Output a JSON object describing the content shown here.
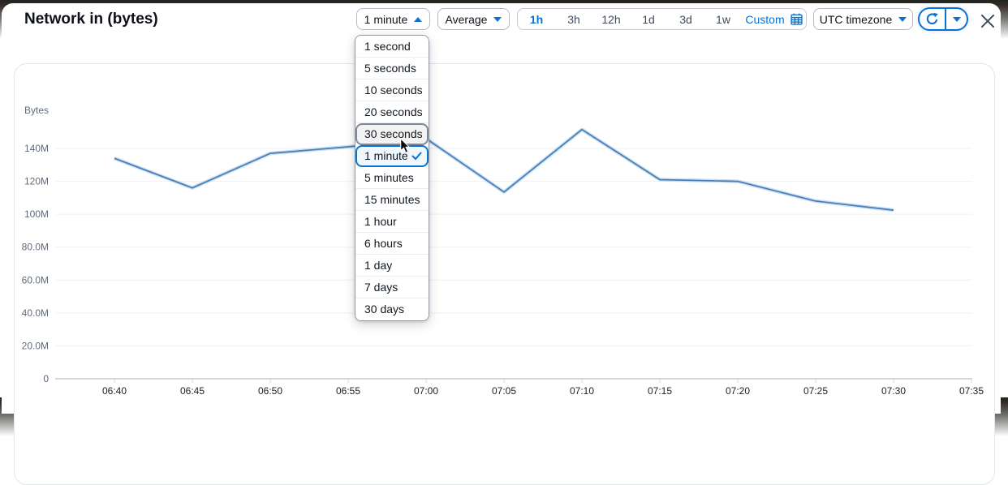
{
  "header": {
    "title": "Network in (bytes)",
    "period_button": {
      "label": "1 minute",
      "state": "open"
    },
    "statistic_button": {
      "label": "Average"
    },
    "time_ranges": [
      {
        "label": "1h",
        "selected": true
      },
      {
        "label": "3h",
        "selected": false
      },
      {
        "label": "12h",
        "selected": false
      },
      {
        "label": "1d",
        "selected": false
      },
      {
        "label": "3d",
        "selected": false
      },
      {
        "label": "1w",
        "selected": false
      }
    ],
    "custom_range_label": "Custom",
    "timezone_button": {
      "label": "UTC timezone"
    }
  },
  "period_menu": {
    "items": [
      {
        "label": "1 second",
        "state": "normal"
      },
      {
        "label": "5 seconds",
        "state": "normal"
      },
      {
        "label": "10 seconds",
        "state": "normal"
      },
      {
        "label": "20 seconds",
        "state": "normal"
      },
      {
        "label": "30 seconds",
        "state": "hovered"
      },
      {
        "label": "1 minute",
        "state": "selected"
      },
      {
        "label": "5 minutes",
        "state": "normal"
      },
      {
        "label": "15 minutes",
        "state": "normal"
      },
      {
        "label": "1 hour",
        "state": "normal"
      },
      {
        "label": "6 hours",
        "state": "normal"
      },
      {
        "label": "1 day",
        "state": "normal"
      },
      {
        "label": "7 days",
        "state": "normal"
      },
      {
        "label": "30 days",
        "state": "normal"
      }
    ]
  },
  "chart_data": {
    "type": "line",
    "title": "Network in (bytes)",
    "ylabel": "Bytes",
    "unit": "bytes (M = millions)",
    "x_ticks": [
      "06:40",
      "06:45",
      "06:50",
      "06:55",
      "07:00",
      "07:05",
      "07:10",
      "07:15",
      "07:20",
      "07:25",
      "07:30",
      "07:35"
    ],
    "y_ticks": [
      {
        "label": "0",
        "value": 0
      },
      {
        "label": "20.0M",
        "value": 20
      },
      {
        "label": "40.0M",
        "value": 40
      },
      {
        "label": "60.0M",
        "value": 60
      },
      {
        "label": "80.0M",
        "value": 80
      },
      {
        "label": "100M",
        "value": 100
      },
      {
        "label": "120M",
        "value": 120
      },
      {
        "label": "140M",
        "value": 140
      }
    ],
    "ylim_millions": [
      0,
      160
    ],
    "grid": "horizontal-only",
    "legend": "none",
    "series": [
      {
        "name": "Network in",
        "x": [
          "06:40",
          "06:45",
          "06:50",
          "06:55",
          "07:00",
          "07:05",
          "07:10",
          "07:15",
          "07:20",
          "07:25",
          "07:30"
        ],
        "values_millions": [
          134,
          116,
          137,
          141,
          146,
          113.5,
          151.5,
          121,
          120,
          108,
          102.5
        ]
      }
    ]
  },
  "colors": {
    "accent": "#0972d3",
    "line": "#4a7bb6",
    "line_glow": "#bcd9f0",
    "axis_text": "#5f6b7a",
    "x_text": "#1a2029",
    "gridline": "#f0f1f2",
    "baseline": "#d4d8da"
  }
}
